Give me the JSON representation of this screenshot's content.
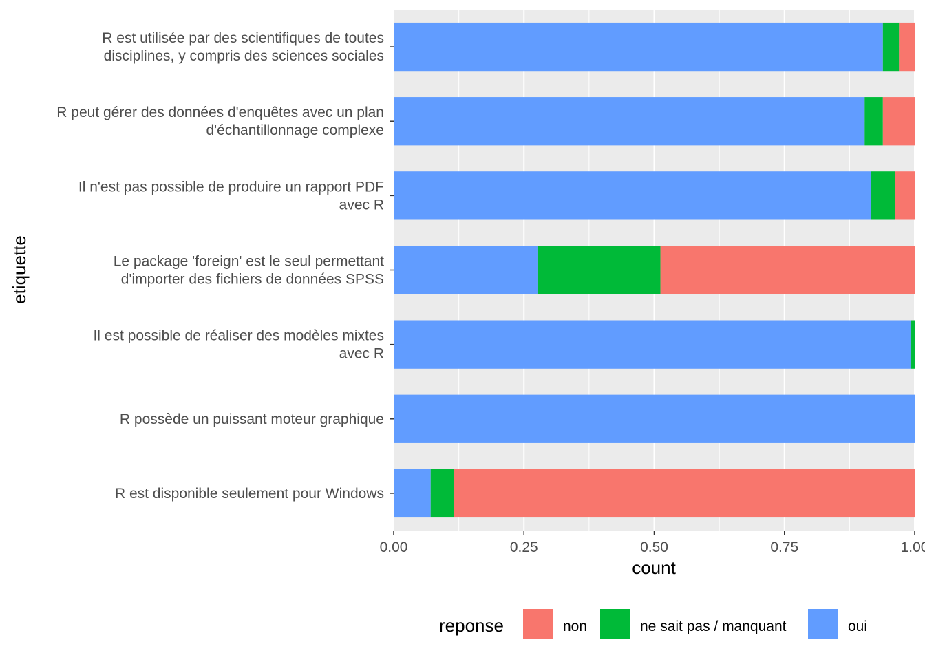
{
  "chart_data": {
    "type": "bar",
    "orientation": "horizontal",
    "stacked": true,
    "xlabel": "count",
    "ylabel": "etiquette",
    "xlim": [
      0,
      1
    ],
    "xticks": [
      "0.00",
      "0.25",
      "0.50",
      "0.75",
      "1.00"
    ],
    "grid": true,
    "legend_position": "bottom",
    "legend_title": "reponse",
    "categories": [
      [
        "R est utilisée par des scientifiques de toutes",
        "disciplines, y compris des sciences sociales"
      ],
      [
        "R peut gérer des données d'enquêtes avec un plan",
        "d'échantillonnage complexe"
      ],
      [
        "Il n'est pas possible de produire un rapport PDF",
        "avec R"
      ],
      [
        "Le package 'foreign' est le seul permettant",
        "d'importer des fichiers de données SPSS"
      ],
      [
        "Il est possible de réaliser des modèles mixtes",
        "avec R"
      ],
      [
        "R possède un puissant moteur graphique"
      ],
      [
        "R est disponible seulement pour Windows"
      ]
    ],
    "series": [
      {
        "name": "oui",
        "color": "#619CFF",
        "values": [
          0.939,
          0.904,
          0.916,
          0.276,
          0.992,
          1.0,
          0.071
        ]
      },
      {
        "name": "ne sait pas / manquant",
        "color": "#00BA38",
        "values": [
          0.031,
          0.035,
          0.046,
          0.236,
          0.008,
          0.0,
          0.044
        ]
      },
      {
        "name": "non",
        "color": "#F8766D",
        "values": [
          0.03,
          0.061,
          0.038,
          0.488,
          0.0,
          0.0,
          0.885
        ]
      }
    ],
    "legend_order": [
      "non",
      "ne sait pas / manquant",
      "oui"
    ]
  }
}
